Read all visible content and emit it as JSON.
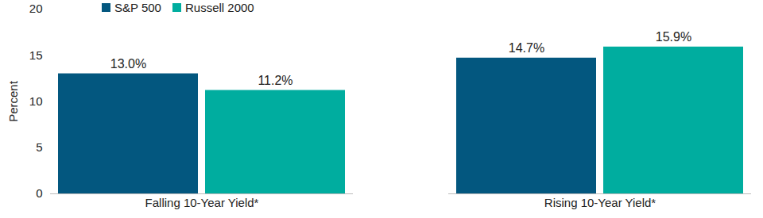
{
  "chart_data": {
    "type": "bar",
    "categories": [
      "Falling 10-Year Yield*",
      "Rising 10-Year Yield*"
    ],
    "series": [
      {
        "name": "S&P 500",
        "color": "#03577f",
        "values": [
          13.0,
          14.7
        ],
        "value_labels": [
          "13.0%",
          "14.7%"
        ]
      },
      {
        "name": "Russell 2000",
        "color": "#00ad9f",
        "values": [
          11.2,
          15.9
        ],
        "value_labels": [
          "11.2%",
          "15.9%"
        ]
      }
    ],
    "y_label": "Percent",
    "ylim": [
      0,
      20
    ],
    "yticks": [
      0,
      5,
      10,
      15,
      20
    ],
    "grid": false,
    "legend": "top-left",
    "data_labels": true
  }
}
